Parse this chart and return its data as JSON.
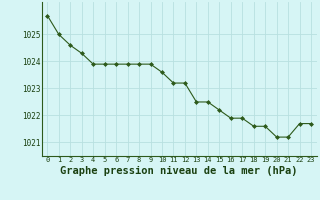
{
  "x": [
    0,
    1,
    2,
    3,
    4,
    5,
    6,
    7,
    8,
    9,
    10,
    11,
    12,
    13,
    14,
    15,
    16,
    17,
    18,
    19,
    20,
    21,
    22,
    23
  ],
  "y": [
    1025.7,
    1025.0,
    1024.6,
    1024.3,
    1023.9,
    1023.9,
    1023.9,
    1023.9,
    1023.9,
    1023.9,
    1023.6,
    1023.2,
    1023.2,
    1022.5,
    1022.5,
    1022.2,
    1021.9,
    1021.9,
    1021.6,
    1021.6,
    1021.2,
    1021.2,
    1021.7,
    1021.7
  ],
  "line_color": "#2d5a1b",
  "marker": "D",
  "marker_size": 2.0,
  "bg_color": "#d6f5f5",
  "grid_color": "#b8e0e0",
  "title": "Graphe pression niveau de la mer (hPa)",
  "title_color": "#1a4010",
  "title_fontsize": 7.5,
  "tick_color": "#1a4010",
  "ylim": [
    1020.5,
    1026.2
  ],
  "yticks": [
    1021,
    1022,
    1023,
    1024,
    1025
  ],
  "xlim": [
    -0.5,
    23.5
  ],
  "xticks": [
    0,
    1,
    2,
    3,
    4,
    5,
    6,
    7,
    8,
    9,
    10,
    11,
    12,
    13,
    14,
    15,
    16,
    17,
    18,
    19,
    20,
    21,
    22,
    23
  ]
}
